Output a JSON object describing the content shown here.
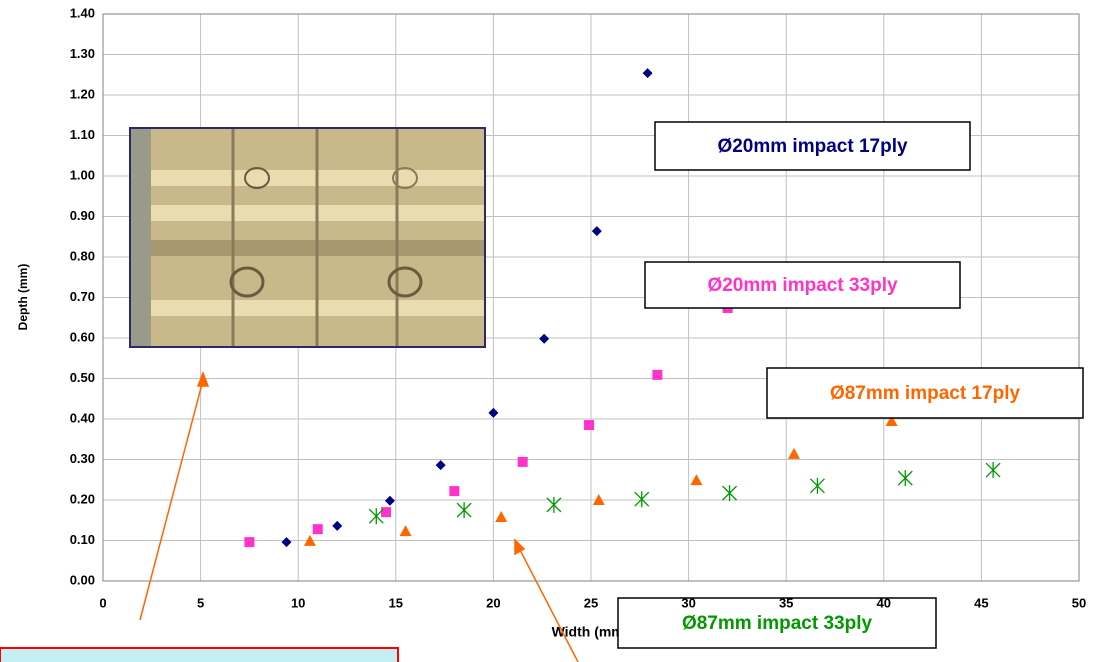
{
  "chart_data": {
    "type": "scatter",
    "x_label": "Width (mm)",
    "y_label": "Depth (mm)",
    "xlim": [
      0,
      50
    ],
    "xticks": [
      0,
      5,
      10,
      15,
      20,
      25,
      30,
      35,
      40,
      45,
      50
    ],
    "ylim": [
      0,
      1.4
    ],
    "yticks": [
      {
        "value": 0,
        "label": "0.00"
      },
      {
        "value": 0.1,
        "label": "0.10"
      },
      {
        "value": 0.2,
        "label": "0.20"
      },
      {
        "value": 0.3,
        "label": "0.30"
      },
      {
        "value": 0.4,
        "label": "0.40"
      },
      {
        "value": 0.5,
        "label": "0.50"
      },
      {
        "value": 0.6,
        "label": "0.60"
      },
      {
        "value": 0.7,
        "label": "0.70"
      },
      {
        "value": 0.8,
        "label": "0.80"
      },
      {
        "value": 0.9,
        "label": "0.90"
      },
      {
        "value": 1.0,
        "label": "1.00"
      },
      {
        "value": 1.1,
        "label": "1.10"
      },
      {
        "value": 1.2,
        "label": "1.20"
      },
      {
        "value": 1.3,
        "label": "1.30"
      },
      {
        "value": 1.4,
        "label": "1.40"
      }
    ],
    "grid": true,
    "series": [
      {
        "name": "Ø20mm impact 17ply",
        "color": "#000080",
        "marker": "diamond",
        "x": [
          9.4,
          12.0,
          14.7,
          17.3,
          20.0,
          22.6,
          25.3,
          27.9
        ],
        "values": [
          0.096,
          0.136,
          0.198,
          0.286,
          0.415,
          0.598,
          0.864,
          1.254
        ]
      },
      {
        "name": "Ø20mm impact 33ply",
        "color": "#ff33cc",
        "marker": "square",
        "x": [
          7.5,
          11.0,
          14.5,
          18.0,
          21.5,
          24.9,
          28.4,
          32.0
        ],
        "values": [
          0.096,
          0.128,
          0.17,
          0.222,
          0.294,
          0.385,
          0.509,
          0.674
        ]
      },
      {
        "name": "Ø87mm impact 17ply",
        "color": "#ff6600",
        "marker": "triangle",
        "x": [
          10.6,
          15.5,
          20.4,
          25.4,
          30.4,
          35.4,
          40.4
        ],
        "values": [
          0.099,
          0.123,
          0.158,
          0.2,
          0.249,
          0.314,
          0.395
        ]
      },
      {
        "name": "Ø87mm impact 33ply",
        "color": "#009900",
        "marker": "asterisk",
        "x": [
          14.0,
          18.5,
          23.1,
          27.6,
          32.1,
          36.6,
          41.1,
          45.6
        ],
        "values": [
          0.16,
          0.175,
          0.188,
          0.202,
          0.217,
          0.235,
          0.254,
          0.274
        ]
      }
    ]
  }
}
